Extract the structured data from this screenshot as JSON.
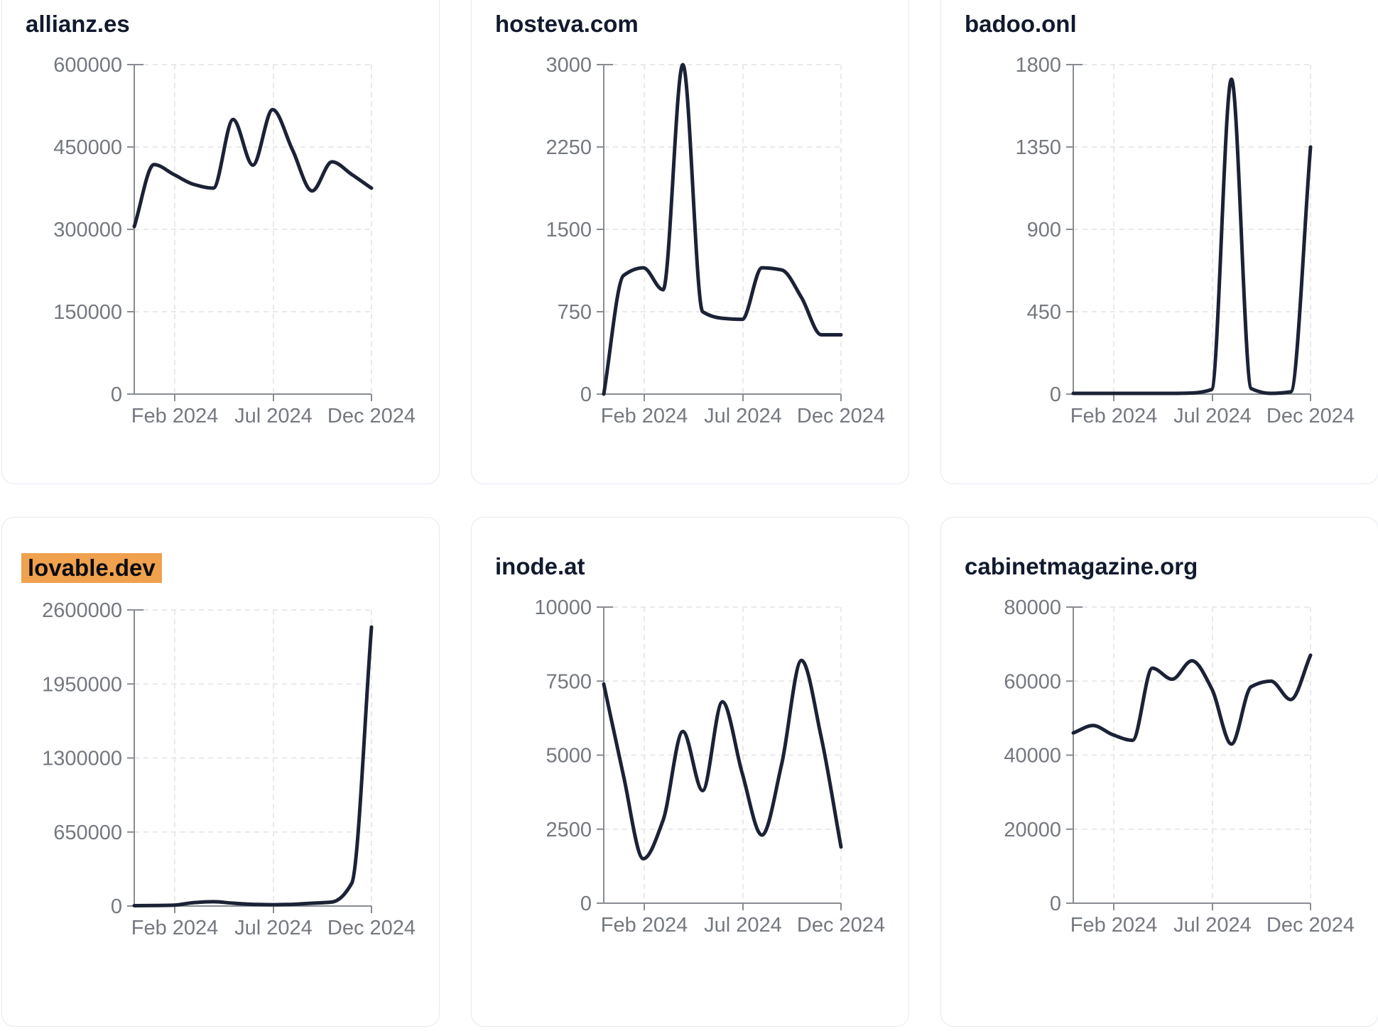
{
  "style": {
    "background": "#ffffff",
    "card_border": "#e4e9f1",
    "title_text": "#111a2e",
    "tick_text": "#74787f",
    "axis_color": "#888c92",
    "grid_color": "#e9e9eb",
    "line_color": "#1c2236",
    "highlight_color": "#efa14e"
  },
  "chart_data": [
    {
      "type": "line",
      "title": "allianz.es",
      "title_highlighted": false,
      "x": [
        "Dec 2023",
        "Jan 2024",
        "Feb 2024",
        "Mar 2024",
        "Apr 2024",
        "May 2024",
        "Jun 2024",
        "Jul 2024",
        "Aug 2024",
        "Sep 2024",
        "Oct 2024",
        "Nov 2024",
        "Dec 2024"
      ],
      "values": [
        305000,
        418000,
        400000,
        382000,
        375000,
        500000,
        417000,
        518000,
        445000,
        370000,
        423000,
        400000,
        375000
      ],
      "x_tick_labels": [
        "Feb 2024",
        "Jul 2024",
        "Dec 2024"
      ],
      "yticks": [
        0,
        150000,
        300000,
        450000,
        600000
      ],
      "ylim": [
        0,
        600000
      ],
      "grid": true,
      "legend": false
    },
    {
      "type": "line",
      "title": "hosteva.com",
      "title_highlighted": false,
      "x": [
        "Dec 2023",
        "Jan 2024",
        "Feb 2024",
        "Mar 2024",
        "Apr 2024",
        "May 2024",
        "Jun 2024",
        "Jul 2024",
        "Aug 2024",
        "Sep 2024",
        "Oct 2024",
        "Nov 2024",
        "Dec 2024"
      ],
      "values": [
        0,
        1080,
        1150,
        950,
        3000,
        750,
        690,
        680,
        1150,
        1130,
        880,
        540,
        540
      ],
      "x_tick_labels": [
        "Feb 2024",
        "Jul 2024",
        "Dec 2024"
      ],
      "yticks": [
        0,
        750,
        1500,
        2250,
        3000
      ],
      "ylim": [
        0,
        3000
      ],
      "grid": true,
      "legend": false
    },
    {
      "type": "line",
      "title": "badoo.onl",
      "title_highlighted": false,
      "x": [
        "Dec 2023",
        "Jan 2024",
        "Feb 2024",
        "Mar 2024",
        "Apr 2024",
        "May 2024",
        "Jun 2024",
        "Jul 2024",
        "Aug 2024",
        "Sep 2024",
        "Oct 2024",
        "Nov 2024",
        "Dec 2024"
      ],
      "values": [
        4,
        4,
        4,
        4,
        4,
        4,
        6,
        25,
        1720,
        30,
        4,
        12,
        1350
      ],
      "x_tick_labels": [
        "Feb 2024",
        "Jul 2024",
        "Dec 2024"
      ],
      "yticks": [
        0,
        450,
        900,
        1350,
        1800
      ],
      "ylim": [
        0,
        1800
      ],
      "grid": true,
      "legend": false
    },
    {
      "type": "line",
      "title": "lovable.dev",
      "title_highlighted": true,
      "x": [
        "Dec 2023",
        "Jan 2024",
        "Feb 2024",
        "Mar 2024",
        "Apr 2024",
        "May 2024",
        "Jun 2024",
        "Jul 2024",
        "Aug 2024",
        "Sep 2024",
        "Oct 2024",
        "Nov 2024",
        "Dec 2024"
      ],
      "values": [
        3000,
        5000,
        8000,
        30000,
        38000,
        25000,
        15000,
        12000,
        15000,
        25000,
        35000,
        200000,
        2450000
      ],
      "x_tick_labels": [
        "Feb 2024",
        "Jul 2024",
        "Dec 2024"
      ],
      "yticks": [
        0,
        650000,
        1300000,
        1950000,
        2600000
      ],
      "ylim": [
        0,
        2600000
      ],
      "grid": true,
      "legend": false
    },
    {
      "type": "line",
      "title": "inode.at",
      "title_highlighted": false,
      "x": [
        "Dec 2023",
        "Jan 2024",
        "Feb 2024",
        "Mar 2024",
        "Apr 2024",
        "May 2024",
        "Jun 2024",
        "Jul 2024",
        "Aug 2024",
        "Sep 2024",
        "Oct 2024",
        "Nov 2024",
        "Dec 2024"
      ],
      "values": [
        7400,
        4300,
        1500,
        2800,
        5800,
        3800,
        6800,
        4400,
        2300,
        4700,
        8200,
        5600,
        1900
      ],
      "x_tick_labels": [
        "Feb 2024",
        "Jul 2024",
        "Dec 2024"
      ],
      "yticks": [
        0,
        2500,
        5000,
        7500,
        10000
      ],
      "ylim": [
        0,
        10000
      ],
      "grid": true,
      "legend": false
    },
    {
      "type": "line",
      "title": "cabinetmagazine.org",
      "title_highlighted": false,
      "x": [
        "Dec 2023",
        "Jan 2024",
        "Feb 2024",
        "Mar 2024",
        "Apr 2024",
        "May 2024",
        "Jun 2024",
        "Jul 2024",
        "Aug 2024",
        "Sep 2024",
        "Oct 2024",
        "Nov 2024",
        "Dec 2024"
      ],
      "values": [
        46000,
        48000,
        45500,
        44000,
        63500,
        60500,
        65500,
        58000,
        43000,
        58500,
        60000,
        55000,
        67000
      ],
      "x_tick_labels": [
        "Feb 2024",
        "Jul 2024",
        "Dec 2024"
      ],
      "yticks": [
        0,
        20000,
        40000,
        60000,
        80000
      ],
      "ylim": [
        0,
        80000
      ],
      "grid": true,
      "legend": false
    }
  ]
}
